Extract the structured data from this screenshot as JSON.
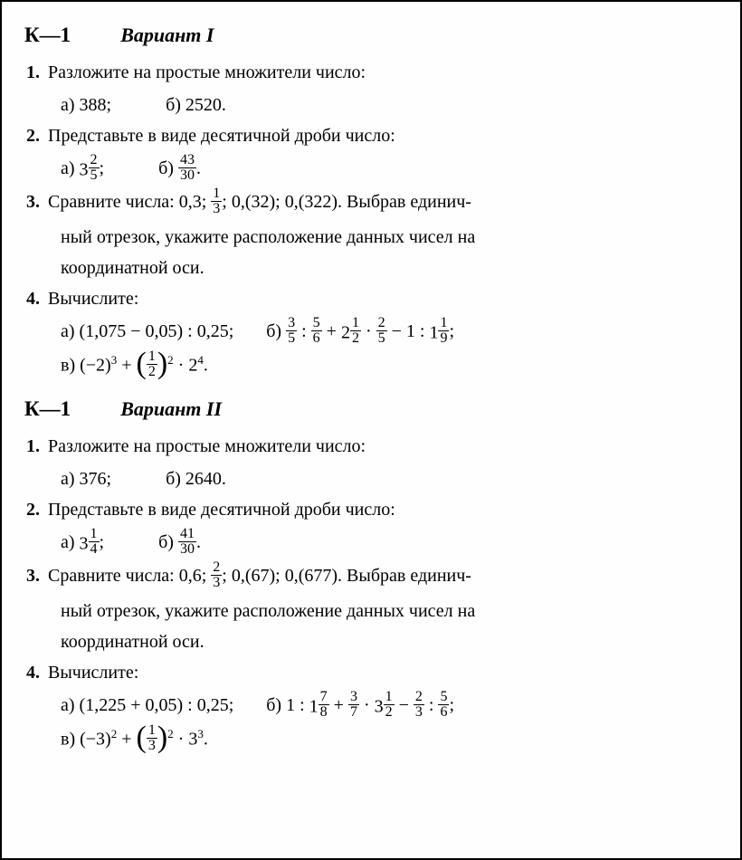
{
  "variant1": {
    "header_k": "К—1",
    "header_variant": "Вариант I",
    "p1": {
      "text": "Разложите на простые множители число:",
      "a": "а) 388;",
      "b": "б) 2520."
    },
    "p2": {
      "text": "Представьте в виде десятичной дроби число:",
      "a_prefix": "а) ",
      "a_whole": "3",
      "a_num": "2",
      "a_den": "5",
      "a_suffix": ";",
      "b_prefix": "б) ",
      "b_num": "43",
      "b_den": "30",
      "b_suffix": "."
    },
    "p3": {
      "line1_a": "Сравните числа: 0,3; ",
      "line1_num": "1",
      "line1_den": "3",
      "line1_b": "; 0,(32); 0,(322). Выбрав единич-",
      "line2": "ный отрезок, укажите расположение данных чисел на",
      "line3": "координатной оси."
    },
    "p4": {
      "text": "Вычислите:",
      "a": "а) (1,075 − 0,05) : 0,25;",
      "b_pre": "б) ",
      "в_pre": "в) "
    }
  },
  "variant2": {
    "header_k": "К—1",
    "header_variant": "Вариант II",
    "p1": {
      "text": "Разложите на простые множители число:",
      "a": "а) 376;",
      "b": "б) 2640."
    },
    "p2": {
      "text": "Представьте в виде десятичной дроби число:",
      "a_prefix": "а) ",
      "a_whole": "3",
      "a_num": "1",
      "a_den": "4",
      "a_suffix": ";",
      "b_prefix": "б) ",
      "b_num": "41",
      "b_den": "30",
      "b_suffix": "."
    },
    "p3": {
      "line1_a": "Сравните числа: 0,6; ",
      "line1_num": "2",
      "line1_den": "3",
      "line1_b": "; 0,(67); 0,(677). Выбрав единич-",
      "line2": "ный отрезок, укажите расположение данных чисел на",
      "line3": "координатной оси."
    },
    "p4": {
      "text": "Вычислите:",
      "a": "а) (1,225 + 0,05) : 0,25;",
      "b_pre": "б) ",
      "в_pre": "в) "
    }
  },
  "labels": {
    "n1": "1.",
    "n2": "2.",
    "n3": "3.",
    "n4": "4."
  }
}
